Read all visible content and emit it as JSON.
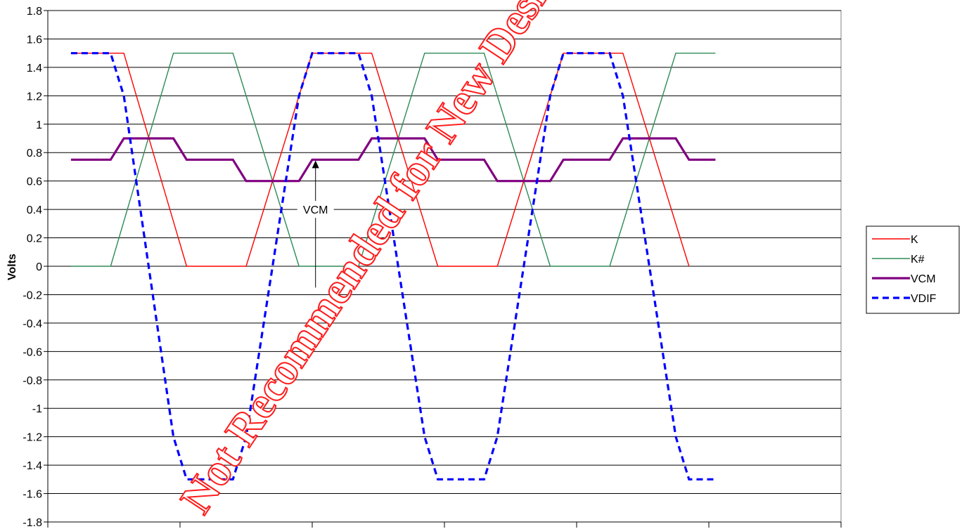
{
  "chart_data": {
    "type": "line",
    "ylabel": "Volts",
    "xlabel": "",
    "title": "",
    "ylim": [
      -1.8,
      1.8
    ],
    "yticks": [
      "1.8",
      "1.6",
      "1.4",
      "1.2",
      "1",
      "0.8",
      "0.6",
      "0.4",
      "0.2",
      "0",
      "-0.2",
      "-0.4",
      "-0.6",
      "-0.8",
      "-1",
      "-1.2",
      "-1.4",
      "-1.6",
      "-1.8"
    ],
    "x_major_ticks": [
      0,
      20,
      40,
      60,
      80,
      100,
      120
    ],
    "xlim": [
      0,
      120
    ],
    "grid": "horizontal",
    "legend_position": "right",
    "colors": {
      "K": "#ff0000",
      "K#": "#2e8b57",
      "VCM": "#800080",
      "VDIF": "#0000ff"
    },
    "series": [
      {
        "name": "K",
        "style": "solid",
        "x": [
          3.5,
          11.5,
          21,
          30,
          40,
          49,
          59,
          68,
          78,
          87,
          97
        ],
        "y": [
          1.5,
          1.5,
          0,
          0,
          1.5,
          1.5,
          0,
          0,
          1.5,
          1.5,
          0
        ]
      },
      {
        "name": "K#",
        "style": "solid",
        "x": [
          3.5,
          9.5,
          19,
          28,
          38,
          47,
          57,
          66,
          76,
          85,
          95,
          101
        ],
        "y": [
          0,
          0,
          1.5,
          1.5,
          0,
          0,
          1.5,
          1.5,
          0,
          0,
          1.5,
          1.5
        ]
      },
      {
        "name": "VCM",
        "style": "thick",
        "x": [
          3.5,
          9.5,
          11.5,
          19,
          21,
          28,
          30,
          38,
          40,
          47,
          49,
          57,
          59,
          66,
          68,
          76,
          78,
          85,
          87,
          95,
          97,
          101
        ],
        "y": [
          0.75,
          0.75,
          0.9,
          0.9,
          0.75,
          0.75,
          0.6,
          0.6,
          0.75,
          0.75,
          0.9,
          0.9,
          0.75,
          0.75,
          0.6,
          0.6,
          0.75,
          0.75,
          0.9,
          0.9,
          0.75,
          0.75
        ]
      },
      {
        "name": "VDIF",
        "style": "dashed",
        "x": [
          3.5,
          9.5,
          11.5,
          19,
          21,
          28,
          30,
          38,
          40,
          47,
          49,
          57,
          59,
          66,
          68,
          76,
          78,
          85,
          87,
          95,
          97,
          101
        ],
        "y": [
          1.5,
          1.5,
          1.2,
          -1.2,
          -1.5,
          -1.5,
          -1.2,
          1.2,
          1.5,
          1.5,
          1.2,
          -1.2,
          -1.5,
          -1.5,
          -1.2,
          1.2,
          1.5,
          1.5,
          1.2,
          -1.2,
          -1.5,
          -1.5
        ]
      }
    ],
    "annotations": [
      {
        "text": "VCM",
        "x": 40.5,
        "y": 0.75
      }
    ]
  },
  "watermark_text": "Not Recommended for New Designs"
}
